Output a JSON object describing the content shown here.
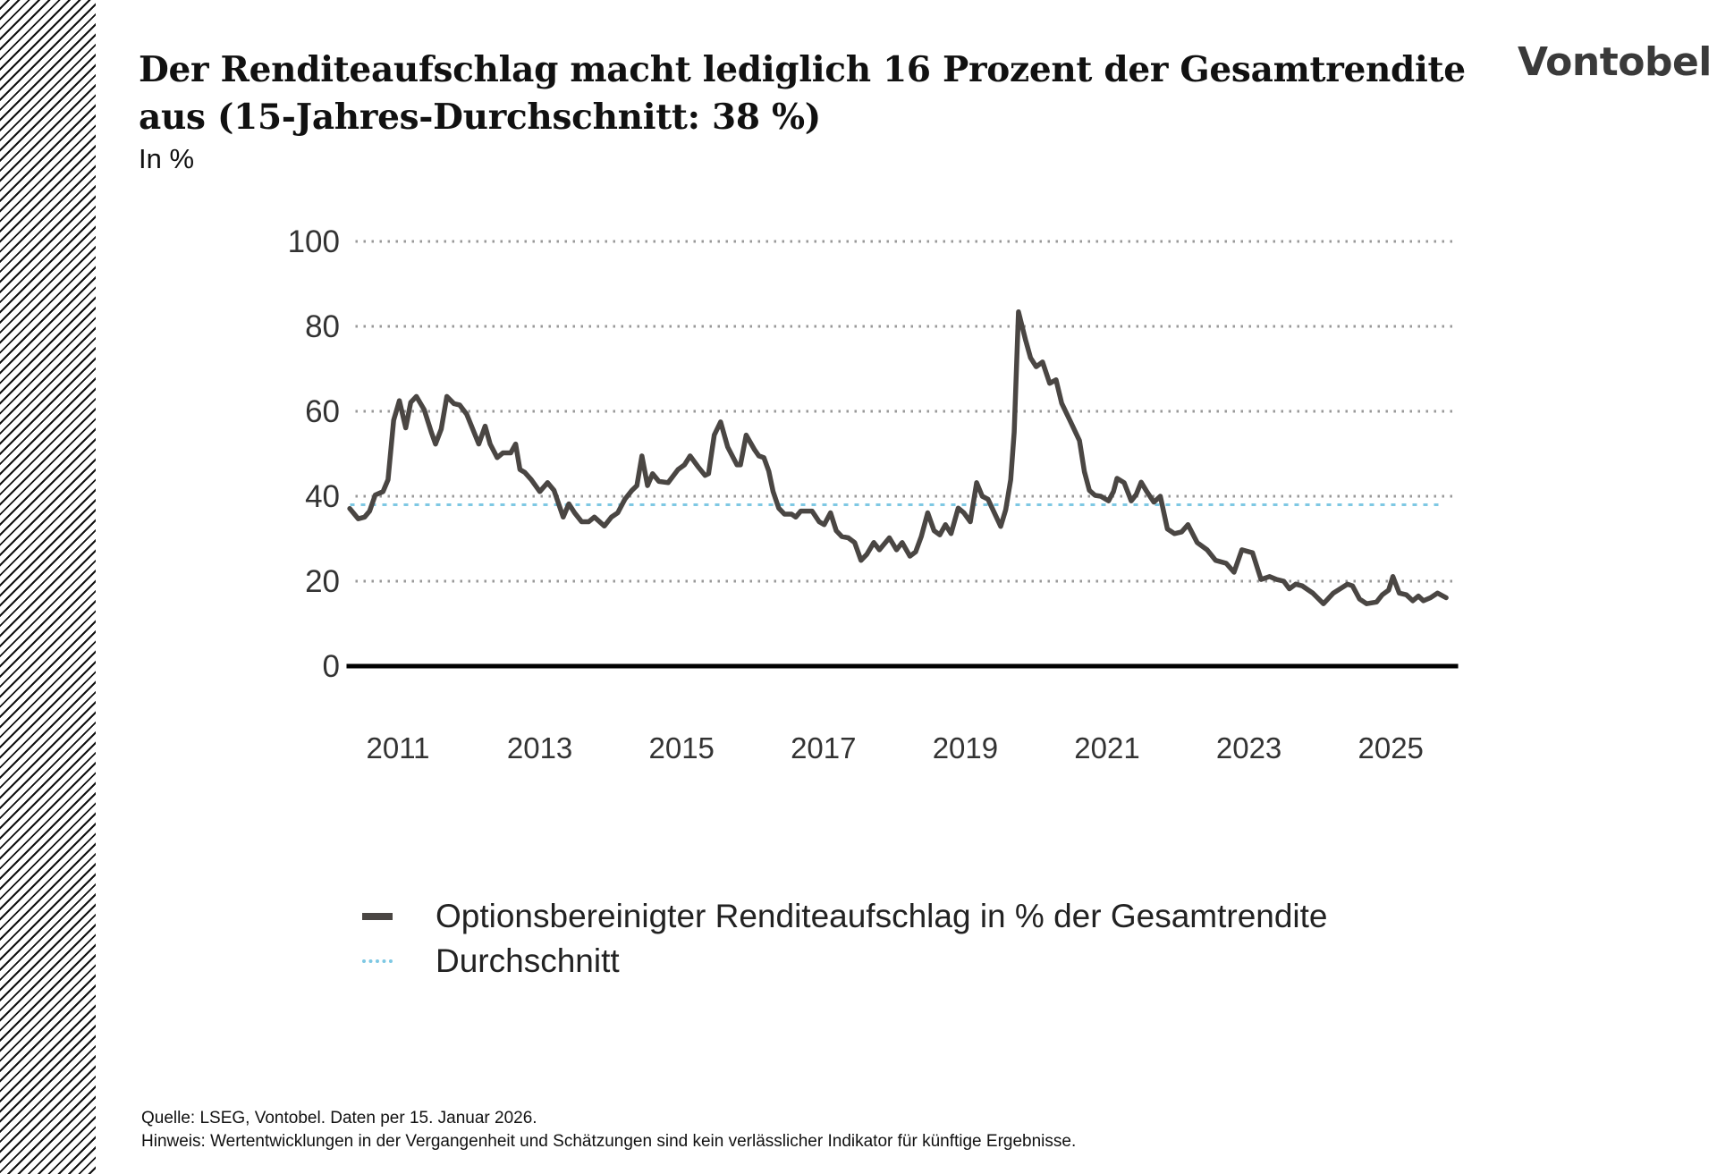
{
  "title": "Der Renditeaufschlag macht lediglich 16 Prozent der Gesamtrendite aus (15-Jahres-Durchschnitt: 38 %)",
  "subtitle": "In %",
  "logo": "Vontobel",
  "source": "Quelle: LSEG, Vontobel. Daten per 15. Januar 2026.",
  "note": "Hinweis: Wertentwicklungen in der Vergangenheit und Schätzungen sind kein verlässlicher Indikator für künftige Ergebnisse.",
  "colors": {
    "series": "#4a4643",
    "average": "#7ec8e3",
    "grid": "#999999",
    "axis": "#000000"
  },
  "chart_data": {
    "type": "line",
    "title": "",
    "xlabel": "",
    "ylabel": "In %",
    "xlim": [
      2010.8,
      2026.45
    ],
    "ylim": [
      0,
      100
    ],
    "yticks": [
      0,
      20,
      40,
      60,
      80,
      100
    ],
    "xtick_labels": [
      "2011",
      "2013",
      "2015",
      "2017",
      "2019",
      "2021",
      "2023",
      "2025"
    ],
    "grid": "horizontal dotted",
    "legend_position": "bottom",
    "series": [
      {
        "name": "Optionsbereinigter Renditeaufschlag in % der Gesamtrendite",
        "x": [
          2010.82,
          2010.94,
          2011.03,
          2011.1,
          2011.18,
          2011.29,
          2011.36,
          2011.44,
          2011.52,
          2011.61,
          2011.68,
          2011.76,
          2011.87,
          2011.97,
          2012.03,
          2012.11,
          2012.19,
          2012.29,
          2012.37,
          2012.47,
          2012.64,
          2012.73,
          2012.8,
          2012.9,
          2012.98,
          2013.09,
          2013.16,
          2013.22,
          2013.29,
          2013.38,
          2013.5,
          2013.61,
          2013.7,
          2013.83,
          2013.91,
          2013.99,
          2014.09,
          2014.19,
          2014.27,
          2014.41,
          2014.51,
          2014.6,
          2014.7,
          2014.8,
          2014.87,
          2014.94,
          2015.02,
          2015.09,
          2015.18,
          2015.31,
          2015.45,
          2015.54,
          2015.62,
          2015.73,
          2015.83,
          2015.88,
          2015.96,
          2016.05,
          2016.15,
          2016.28,
          2016.33,
          2016.41,
          2016.53,
          2016.59,
          2016.66,
          2016.73,
          2016.79,
          2016.87,
          2016.95,
          2017.05,
          2017.11,
          2017.18,
          2017.34,
          2017.44,
          2017.51,
          2017.6,
          2017.68,
          2017.76,
          2017.85,
          2017.94,
          2018.03,
          2018.11,
          2018.21,
          2018.29,
          2018.43,
          2018.53,
          2018.61,
          2018.72,
          2018.8,
          2018.88,
          2018.97,
          2019.06,
          2019.14,
          2019.22,
          2019.3,
          2019.4,
          2019.48,
          2019.57,
          2019.66,
          2019.74,
          2019.82,
          2020.0,
          2020.07,
          2020.14,
          2020.19,
          2020.25,
          2020.35,
          2020.42,
          2020.5,
          2020.59,
          2020.69,
          2020.78,
          2020.86,
          2020.98,
          2021.11,
          2021.18,
          2021.25,
          2021.33,
          2021.41,
          2021.52,
          2021.59,
          2021.64,
          2021.74,
          2021.84,
          2021.91,
          2021.98,
          2022.06,
          2022.16,
          2022.25,
          2022.35,
          2022.45,
          2022.55,
          2022.64,
          2022.77,
          2022.91,
          2023.03,
          2023.18,
          2023.29,
          2023.4,
          2023.55,
          2023.67,
          2023.79,
          2023.89,
          2023.99,
          2024.07,
          2024.16,
          2024.25,
          2024.4,
          2024.55,
          2024.69,
          2024.89,
          2024.96,
          2025.06,
          2025.16,
          2025.3,
          2025.38,
          2025.47,
          2025.53,
          2025.62,
          2025.72,
          2025.81,
          2025.89,
          2025.96,
          2026.06,
          2026.16,
          2026.28
        ],
        "y": [
          37.1,
          34.7,
          35.1,
          36.5,
          40.3,
          41.1,
          43.9,
          57.9,
          62.5,
          56.1,
          62.1,
          63.5,
          60.4,
          55.1,
          52.3,
          55.8,
          63.5,
          61.8,
          61.5,
          59.3,
          52.3,
          56.5,
          52.3,
          49.1,
          50.2,
          50.2,
          52.3,
          46.3,
          45.6,
          43.9,
          41.1,
          43.2,
          41.4,
          35.1,
          38.2,
          36.1,
          34.0,
          34.0,
          35.1,
          33.0,
          35.1,
          36.1,
          39.3,
          41.4,
          42.5,
          49.5,
          42.5,
          45.3,
          43.5,
          43.2,
          46.3,
          47.4,
          49.5,
          47.0,
          44.9,
          45.3,
          54.4,
          57.5,
          51.6,
          47.4,
          47.4,
          54.4,
          50.9,
          49.5,
          49.1,
          45.9,
          41.1,
          37.2,
          35.8,
          35.8,
          35.1,
          36.5,
          36.5,
          34.0,
          33.3,
          36.1,
          31.9,
          30.5,
          30.2,
          29.1,
          24.9,
          26.3,
          29.1,
          27.4,
          30.2,
          27.4,
          29.1,
          25.9,
          26.9,
          30.5,
          36.1,
          31.9,
          30.9,
          33.3,
          31.2,
          37.2,
          36.1,
          34.0,
          43.2,
          40.0,
          39.3,
          32.9,
          36.8,
          43.9,
          55.1,
          83.4,
          76.8,
          72.6,
          70.5,
          71.6,
          66.6,
          67.4,
          61.9,
          57.7,
          53.1,
          45.8,
          41.4,
          40.2,
          40.0,
          38.9,
          41.1,
          44.2,
          43.2,
          38.9,
          40.4,
          43.3,
          41.1,
          38.6,
          40.0,
          32.3,
          31.2,
          31.6,
          33.3,
          29.1,
          27.4,
          24.9,
          24.2,
          22.1,
          27.4,
          26.7,
          20.4,
          21.1,
          20.4,
          20.0,
          18.2,
          19.3,
          18.9,
          17.2,
          14.7,
          17.2,
          19.3,
          18.9,
          15.8,
          14.7,
          15.1,
          16.8,
          17.9,
          21.1,
          17.2,
          16.8,
          15.4,
          16.5,
          15.4,
          16.1,
          17.2,
          16.1
        ]
      },
      {
        "name": "Durchschnitt",
        "value": 38
      }
    ]
  }
}
